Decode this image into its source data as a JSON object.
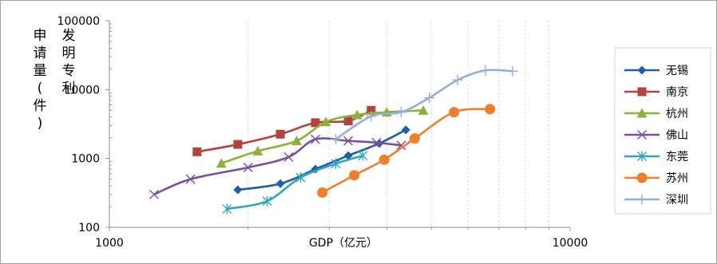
{
  "chart_data": {
    "type": "line",
    "xscale": "log",
    "yscale": "log",
    "xlim": [
      1000,
      10000
    ],
    "ylim": [
      100,
      100000
    ],
    "x_ticks": [
      "1000",
      "10000"
    ],
    "y_ticks": [
      "100",
      "1000",
      "10000",
      "100000"
    ],
    "xlabel": "GDP（亿元）",
    "ylabel": "发明专利申请量(件)",
    "grid": "vertical minor dashed",
    "legend": "right",
    "series": [
      {
        "name": "无锡",
        "color": "#1f5fa8",
        "marker": "diamond",
        "x": [
          1900,
          2350,
          2800,
          3300,
          3850,
          4400
        ],
        "y": [
          350,
          430,
          700,
          1100,
          1650,
          2600
        ]
      },
      {
        "name": "南京",
        "color": "#b5413d",
        "marker": "square",
        "x": [
          1550,
          1900,
          2350,
          2800,
          3300,
          3700
        ],
        "y": [
          1250,
          1600,
          2250,
          3300,
          3500,
          5000
        ]
      },
      {
        "name": "杭州",
        "color": "#8cb23a",
        "marker": "triangle",
        "x": [
          1750,
          2100,
          2550,
          2950,
          3450,
          4000,
          4800
        ],
        "y": [
          850,
          1280,
          1800,
          3400,
          4300,
          4700,
          5000
        ]
      },
      {
        "name": "佛山",
        "color": "#7a4ea0",
        "marker": "x",
        "x": [
          1250,
          1500,
          2000,
          2450,
          2800,
          3300,
          3800,
          4300
        ],
        "y": [
          300,
          500,
          740,
          1050,
          1900,
          1800,
          1700,
          1550
        ]
      },
      {
        "name": "东莞",
        "color": "#2fa5c1",
        "marker": "asterisk",
        "x": [
          1800,
          2200,
          2600,
          3100,
          3550
        ],
        "y": [
          185,
          240,
          530,
          840,
          1100
        ]
      },
      {
        "name": "苏州",
        "color": "#f07d2c",
        "marker": "circle",
        "x": [
          2900,
          3400,
          3950,
          4600,
          5600,
          6700
        ],
        "y": [
          320,
          570,
          960,
          1950,
          4700,
          5200
        ]
      },
      {
        "name": "深圳",
        "color": "#94aed9",
        "marker": "plus",
        "x": [
          3100,
          3700,
          4300,
          4950,
          5700,
          6550,
          7500
        ],
        "y": [
          1900,
          4100,
          4700,
          7600,
          13800,
          19000,
          18500
        ]
      }
    ]
  }
}
